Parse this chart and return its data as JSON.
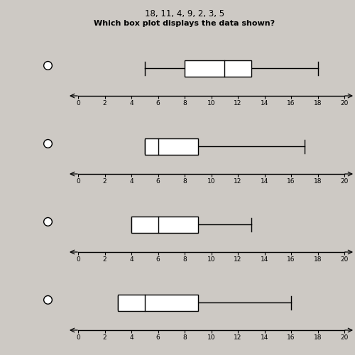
{
  "title_line1": "18, 11, 4, 9, 2, 3, 5",
  "question": "Which box plot displays the data shown?",
  "background_color": "#cdc9c4",
  "box_plots": [
    {
      "min": 5,
      "q1": 8,
      "median": 11,
      "q3": 13,
      "max": 18
    },
    {
      "min": 5,
      "q1": 5,
      "median": 6,
      "q3": 9,
      "max": 17
    },
    {
      "min": 4,
      "q1": 4,
      "median": 6,
      "q3": 9,
      "max": 13
    },
    {
      "min": 3,
      "q1": 3,
      "median": 5,
      "q3": 9,
      "max": 16
    }
  ],
  "xmin": 0,
  "xmax": 20,
  "xticks": [
    0,
    2,
    4,
    6,
    8,
    10,
    12,
    14,
    16,
    18,
    20
  ],
  "box_color": "white",
  "box_edgecolor": "black",
  "line_color": "black"
}
